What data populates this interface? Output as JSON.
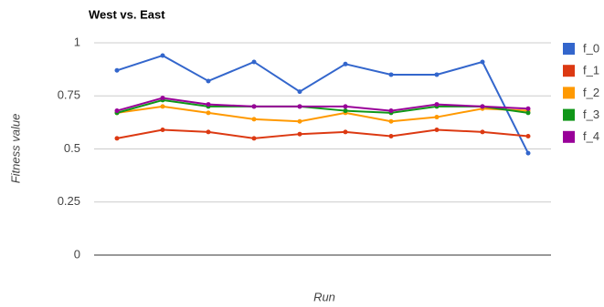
{
  "chart_data": {
    "type": "line",
    "title": "West vs. East",
    "x_label": "Run",
    "y_label": "Fitness value",
    "categories": [
      null,
      null,
      null,
      null,
      null,
      null,
      null,
      null,
      null,
      null
    ],
    "series": [
      {
        "name": "f_0",
        "color": "#3366cc",
        "values": [
          0.87,
          0.94,
          0.82,
          0.91,
          0.77,
          0.9,
          0.85,
          0.85,
          0.91,
          0.48
        ]
      },
      {
        "name": "f_1",
        "color": "#dc3912",
        "values": [
          0.55,
          0.59,
          0.58,
          0.55,
          0.57,
          0.58,
          0.56,
          0.59,
          0.58,
          0.56
        ]
      },
      {
        "name": "f_2",
        "color": "#ff9900",
        "values": [
          0.67,
          0.7,
          0.67,
          0.64,
          0.63,
          0.67,
          0.63,
          0.65,
          0.69,
          0.68
        ]
      },
      {
        "name": "f_3",
        "color": "#109618",
        "values": [
          0.67,
          0.73,
          0.7,
          0.7,
          0.7,
          0.68,
          0.67,
          0.7,
          0.7,
          0.67
        ]
      },
      {
        "name": "f_4",
        "color": "#990099",
        "values": [
          0.68,
          0.74,
          0.71,
          0.7,
          0.7,
          0.7,
          0.68,
          0.71,
          0.7,
          0.69
        ]
      }
    ],
    "ylim": [
      0,
      1
    ],
    "yticks": [
      0,
      0.25,
      0.5,
      0.75,
      1
    ],
    "grid": true,
    "legend": "right"
  }
}
